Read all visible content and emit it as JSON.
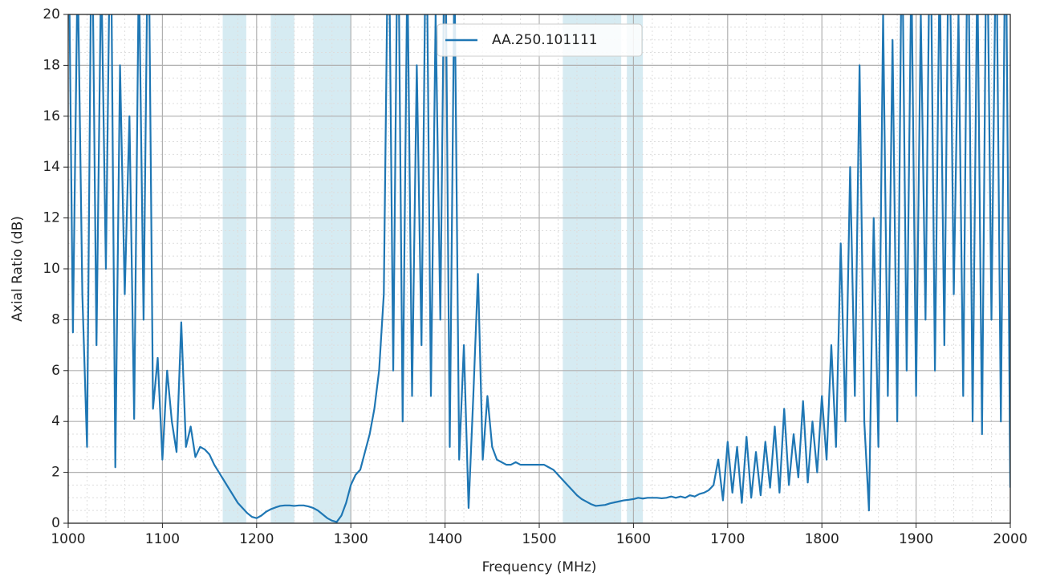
{
  "chart_data": {
    "type": "line",
    "xlabel": "Frequency (MHz)",
    "ylabel": "Axial Ratio (dB)",
    "xlim": [
      1000,
      2000
    ],
    "ylim": [
      0,
      20
    ],
    "xticks": [
      1000,
      1100,
      1200,
      1300,
      1400,
      1500,
      1600,
      1700,
      1800,
      1900,
      2000
    ],
    "yticks": [
      0,
      2,
      4,
      6,
      8,
      10,
      12,
      14,
      16,
      18,
      20
    ],
    "grid": true,
    "minor_grid": true,
    "legend": "upper center",
    "bands": [
      [
        1164,
        1189
      ],
      [
        1215,
        1240
      ],
      [
        1260,
        1300
      ],
      [
        1525,
        1587
      ],
      [
        1593,
        1610
      ]
    ],
    "band_color": "#add8e6",
    "x": [
      1000,
      1005,
      1010,
      1015,
      1020,
      1025,
      1030,
      1035,
      1040,
      1045,
      1050,
      1055,
      1060,
      1065,
      1070,
      1075,
      1080,
      1085,
      1090,
      1095,
      1100,
      1105,
      1110,
      1115,
      1120,
      1125,
      1130,
      1135,
      1140,
      1145,
      1150,
      1155,
      1160,
      1165,
      1170,
      1175,
      1180,
      1185,
      1190,
      1195,
      1200,
      1205,
      1210,
      1215,
      1220,
      1225,
      1230,
      1235,
      1240,
      1245,
      1250,
      1255,
      1260,
      1265,
      1270,
      1275,
      1280,
      1285,
      1290,
      1295,
      1300,
      1305,
      1310,
      1315,
      1320,
      1325,
      1330,
      1335,
      1340,
      1345,
      1350,
      1355,
      1360,
      1365,
      1370,
      1375,
      1380,
      1385,
      1390,
      1395,
      1400,
      1405,
      1410,
      1415,
      1420,
      1425,
      1430,
      1435,
      1440,
      1445,
      1450,
      1455,
      1460,
      1465,
      1470,
      1475,
      1480,
      1485,
      1490,
      1495,
      1500,
      1505,
      1510,
      1515,
      1520,
      1525,
      1530,
      1535,
      1540,
      1545,
      1550,
      1555,
      1560,
      1565,
      1570,
      1575,
      1580,
      1585,
      1590,
      1595,
      1600,
      1605,
      1610,
      1615,
      1620,
      1625,
      1630,
      1635,
      1640,
      1645,
      1650,
      1655,
      1660,
      1665,
      1670,
      1675,
      1680,
      1685,
      1690,
      1695,
      1700,
      1705,
      1710,
      1715,
      1720,
      1725,
      1730,
      1735,
      1740,
      1745,
      1750,
      1755,
      1760,
      1765,
      1770,
      1775,
      1780,
      1785,
      1790,
      1795,
      1800,
      1805,
      1810,
      1815,
      1820,
      1825,
      1830,
      1835,
      1840,
      1845,
      1850,
      1855,
      1860,
      1865,
      1870,
      1875,
      1880,
      1885,
      1890,
      1895,
      1900,
      1905,
      1910,
      1915,
      1920,
      1925,
      1930,
      1935,
      1940,
      1945,
      1950,
      1955,
      1960,
      1965,
      1970,
      1975,
      1980,
      1985,
      1990,
      1995,
      2000
    ],
    "series": [
      {
        "name": "AA.250.101111",
        "color": "#1f77b4",
        "values": [
          25,
          7.5,
          22,
          9,
          3,
          25,
          7,
          22,
          10,
          25,
          2.2,
          18,
          9,
          16,
          4.1,
          22,
          8,
          25,
          4.5,
          6.5,
          2.5,
          6,
          4,
          2.8,
          7.9,
          3,
          3.8,
          2.6,
          3,
          2.9,
          2.7,
          2.3,
          2.0,
          1.7,
          1.4,
          1.1,
          0.8,
          0.6,
          0.4,
          0.25,
          0.2,
          0.3,
          0.45,
          0.55,
          0.62,
          0.68,
          0.7,
          0.7,
          0.68,
          0.7,
          0.7,
          0.66,
          0.6,
          0.5,
          0.35,
          0.2,
          0.1,
          0.05,
          0.3,
          0.8,
          1.5,
          1.9,
          2.1,
          2.8,
          3.5,
          4.5,
          6,
          9,
          25,
          6,
          25,
          4,
          22,
          5,
          18,
          7,
          25,
          5,
          20,
          8,
          25,
          3,
          22,
          2.5,
          7,
          0.6,
          5,
          9.8,
          2.5,
          5,
          3,
          2.5,
          2.4,
          2.3,
          2.3,
          2.4,
          2.3,
          2.3,
          2.3,
          2.3,
          2.3,
          2.3,
          2.2,
          2.1,
          1.9,
          1.7,
          1.5,
          1.3,
          1.1,
          0.95,
          0.85,
          0.75,
          0.68,
          0.7,
          0.72,
          0.78,
          0.82,
          0.86,
          0.9,
          0.92,
          0.95,
          1.0,
          0.97,
          1.0,
          1.0,
          1.0,
          0.98,
          1.0,
          1.05,
          1.0,
          1.05,
          1.0,
          1.1,
          1.05,
          1.15,
          1.2,
          1.3,
          1.5,
          2.5,
          0.9,
          3.2,
          1.2,
          3.0,
          0.8,
          3.4,
          1.0,
          2.8,
          1.1,
          3.2,
          1.4,
          3.8,
          1.2,
          4.5,
          1.5,
          3.5,
          1.8,
          4.8,
          1.6,
          4.0,
          2.0,
          5,
          2.5,
          7,
          3,
          11,
          4,
          14,
          5,
          18,
          4,
          0.5,
          12,
          3,
          20,
          5,
          19,
          4,
          24,
          6,
          22,
          5,
          20,
          8,
          25,
          6,
          22,
          7,
          25,
          9,
          20,
          5,
          25,
          4,
          22,
          3.5,
          25,
          8,
          24,
          4,
          25,
          1.4
        ]
      }
    ]
  }
}
